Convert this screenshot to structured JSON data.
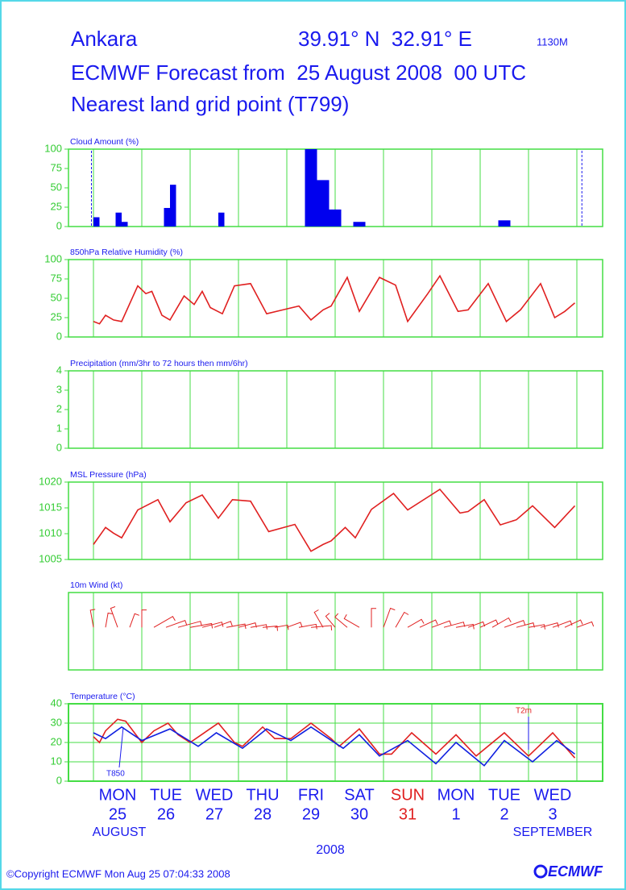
{
  "header": {
    "place": "Ankara",
    "coords": "39.91° N  32.91° E",
    "elevation": "1130M",
    "line2": "ECMWF Forecast from  25 August 2008  00 UTC",
    "line3": "Nearest land grid point (T799)"
  },
  "time_axis": {
    "xlim": [
      -12.4,
      252.8
    ],
    "xticks": [
      0,
      24,
      48,
      72,
      96,
      120,
      144,
      168,
      192,
      216,
      240
    ],
    "days": [
      "MON",
      "TUE",
      "WED",
      "THU",
      "FRI",
      "SAT",
      "SUN",
      "MON",
      "TUE",
      "WED"
    ],
    "dates": [
      "25",
      "26",
      "27",
      "28",
      "29",
      "30",
      "31",
      "1",
      "2",
      "3"
    ],
    "highlight_color": "#e02020",
    "highlight_index": 6,
    "month1": "AUGUST",
    "month2": "SEPTEMBER",
    "year": "2008"
  },
  "chart_data": [
    {
      "type": "bar",
      "title": "Cloud Amount (%)",
      "color": "#0000ee",
      "ylim": [
        0,
        100
      ],
      "yticks": [
        0,
        25,
        50,
        75,
        100
      ],
      "grid": false,
      "x": [
        0,
        11,
        14,
        35,
        38,
        62,
        105,
        111,
        117,
        129,
        201
      ],
      "values": [
        12,
        18,
        6,
        24,
        54,
        18,
        100,
        60,
        22,
        6,
        8
      ]
    },
    {
      "type": "line",
      "title": "850hPa Relative Humidity (%)",
      "ylim": [
        0,
        100
      ],
      "yticks": [
        0,
        25,
        50,
        75,
        100
      ],
      "grid": false,
      "series": [
        {
          "color": "#e02020",
          "x": [
            0,
            3,
            6,
            10,
            14,
            22,
            26,
            29,
            34,
            38,
            45,
            50,
            54,
            58,
            64,
            70,
            78,
            86,
            94,
            102,
            108,
            114,
            118,
            126,
            132,
            142,
            150,
            156,
            166,
            172,
            181,
            186,
            196,
            205,
            212,
            222,
            229,
            234,
            239
          ],
          "values": [
            20,
            17,
            28,
            22,
            20,
            66,
            56,
            59,
            28,
            22,
            53,
            42,
            59,
            38,
            30,
            66,
            69,
            30,
            35,
            40,
            22,
            35,
            40,
            77,
            33,
            77,
            67,
            20,
            56,
            79,
            33,
            35,
            69,
            20,
            35,
            69,
            25,
            33,
            44
          ]
        }
      ]
    },
    {
      "type": "line",
      "title": "Precipitation (mm/3hr to 72 hours then mm/6hr)",
      "ylim": [
        0,
        4
      ],
      "yticks": [
        0,
        1,
        2,
        3,
        4
      ],
      "grid": false,
      "series": []
    },
    {
      "type": "line",
      "title": "MSL Pressure (hPa)",
      "ylim": [
        1005,
        1020
      ],
      "yticks": [
        1005,
        1010,
        1015,
        1020
      ],
      "grid": false,
      "series": [
        {
          "color": "#e02020",
          "x": [
            0,
            6,
            10,
            14,
            22,
            32,
            38,
            46,
            54,
            62,
            69,
            78,
            87,
            100,
            108,
            114,
            118,
            125,
            130,
            138,
            149,
            156,
            172,
            182,
            186,
            194,
            202,
            210,
            218,
            229,
            239
          ],
          "values": [
            1007.9,
            1011.2,
            1010.1,
            1009.2,
            1014.6,
            1016.6,
            1012.3,
            1016,
            1017.5,
            1013,
            1016.6,
            1016.3,
            1010.4,
            1011.8,
            1006.6,
            1007.9,
            1008.6,
            1011.2,
            1009.2,
            1014.7,
            1017.8,
            1014.6,
            1018.6,
            1014,
            1014.3,
            1016.6,
            1011.7,
            1012.7,
            1015.4,
            1011.2,
            1015.4
          ]
        }
      ]
    },
    {
      "type": "barb",
      "title": "10m Wind (kt)",
      "color": "#e02020",
      "x": [
        0,
        6,
        12,
        18,
        24,
        30,
        36,
        42,
        48,
        54,
        60,
        66,
        72,
        78,
        84,
        90,
        96,
        102,
        108,
        114,
        120,
        126,
        132,
        138,
        144,
        150,
        156,
        162,
        168,
        174,
        180,
        186,
        192,
        198,
        204,
        210,
        216,
        222,
        228,
        234,
        240
      ],
      "direction": [
        350,
        10,
        340,
        20,
        0,
        60,
        70,
        75,
        80,
        75,
        70,
        80,
        75,
        80,
        85,
        80,
        70,
        80,
        85,
        330,
        320,
        310,
        300,
        0,
        20,
        30,
        60,
        65,
        70,
        75,
        80,
        70,
        65,
        60,
        70,
        75,
        80,
        75,
        70,
        65,
        70
      ],
      "speed": [
        12,
        10,
        14,
        10,
        12,
        15,
        14,
        16,
        15,
        14,
        12,
        13,
        12,
        11,
        10,
        9,
        10,
        12,
        14,
        12,
        10,
        11,
        12,
        13,
        14,
        12,
        11,
        12,
        13,
        14,
        12,
        11,
        12,
        13,
        14,
        12,
        11,
        12,
        13,
        12,
        11
      ]
    },
    {
      "type": "line",
      "title": "Temperature (°C)",
      "ylim": [
        0,
        40
      ],
      "yticks": [
        0,
        10,
        20,
        30,
        40
      ],
      "grid": true,
      "series": [
        {
          "name": "T2m",
          "color": "#e02020",
          "x": [
            0,
            3,
            6,
            12,
            16,
            24,
            30,
            37,
            42,
            48,
            62,
            70,
            74,
            84,
            90,
            98,
            108,
            118,
            122,
            132,
            142,
            148,
            158,
            170,
            180,
            190,
            204,
            216,
            228,
            239
          ],
          "values": [
            23,
            20,
            26,
            32,
            31,
            20,
            26,
            30,
            24,
            20,
            30,
            20,
            18,
            28,
            22,
            22,
            30,
            22,
            18,
            27,
            14,
            14,
            25,
            14,
            24,
            13,
            25,
            13,
            25,
            12
          ]
        },
        {
          "name": "T850",
          "color": "#1020e0",
          "x": [
            0,
            6,
            14,
            24,
            38,
            52,
            61,
            74,
            86,
            98,
            108,
            124,
            132,
            142,
            156,
            170,
            180,
            194,
            204,
            218,
            230,
            239
          ],
          "values": [
            25,
            22,
            28,
            21,
            27,
            18,
            25,
            17,
            27,
            21,
            28,
            17,
            24,
            13,
            21,
            9,
            20,
            8,
            21,
            10,
            21,
            14
          ]
        }
      ]
    }
  ],
  "footer": {
    "copyright": "©Copyright ECMWF Mon Aug 25 07:04:33 2008",
    "logo": "ECMWF"
  }
}
